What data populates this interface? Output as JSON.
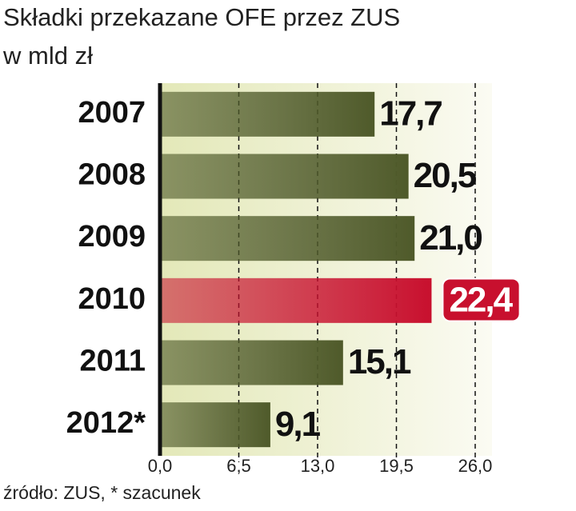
{
  "chart_data": {
    "type": "hbar",
    "title": "Składki przekazane OFE przez ZUS",
    "subtitle": "w mld zł",
    "categories": [
      "2007",
      "2008",
      "2009",
      "2010",
      "2011",
      "2012*"
    ],
    "values": [
      17.7,
      20.5,
      21.0,
      22.4,
      15.1,
      9.1
    ],
    "value_labels": [
      "17,7",
      "20,5",
      "21,0",
      "22,4",
      "15,1",
      "9,1"
    ],
    "colors": [
      "#4f5a2a",
      "#4f5a2a",
      "#4f5a2a",
      "#c8102e",
      "#4f5a2a",
      "#4f5a2a"
    ],
    "highlight_index": 3,
    "xlim": [
      0,
      26
    ],
    "xticks": [
      {
        "value": 0,
        "label": "0,0"
      },
      {
        "value": 6.5,
        "label": "6,5"
      },
      {
        "value": 13.0,
        "label": "13,0"
      },
      {
        "value": 19.5,
        "label": "19,5"
      },
      {
        "value": 26.0,
        "label": "26,0"
      }
    ],
    "grid": true,
    "source": "źródło: ZUS, * szacunek"
  }
}
